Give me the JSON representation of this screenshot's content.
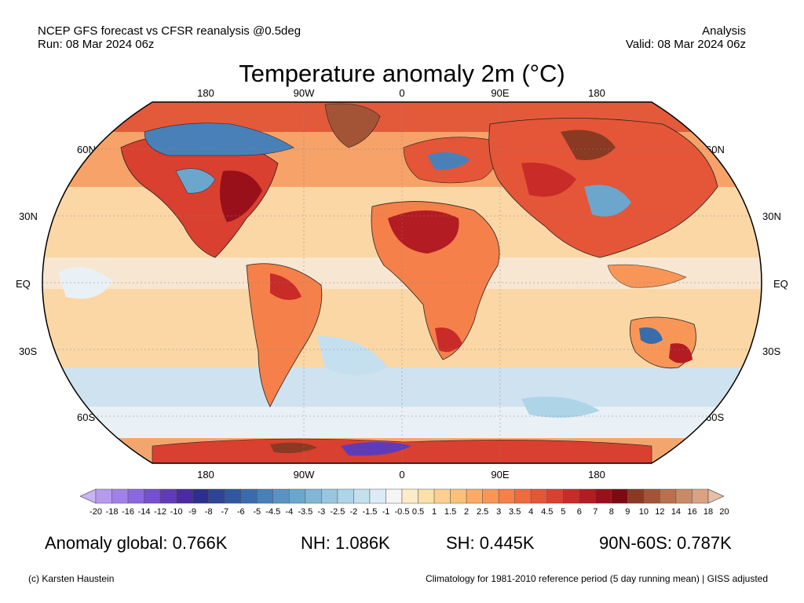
{
  "header": {
    "left_line1": "NCEP GFS forecast vs CFSR reanalysis @0.5deg",
    "left_line2": "Run: 08 Mar 2024 06z",
    "right_line1": "Analysis",
    "right_line2": "Valid: 08 Mar 2024 06z"
  },
  "title": "Temperature anomaly 2m (°C)",
  "map": {
    "lon_labels_top": [
      "180",
      "90W",
      "0",
      "90E",
      "180"
    ],
    "lon_labels_bottom": [
      "180",
      "90W",
      "0",
      "90E",
      "180"
    ],
    "lat_labels_left": [
      "60N",
      "30N",
      "EQ",
      "30S",
      "60S"
    ],
    "lat_labels_right": [
      "60N",
      "30N",
      "EQ",
      "30S",
      "60S"
    ]
  },
  "colorbar": {
    "ticks": [
      "-20",
      "-18",
      "-16",
      "-14",
      "-12",
      "-10",
      "-9",
      "-8",
      "-7",
      "-6",
      "-5",
      "-4.5",
      "-4",
      "-3.5",
      "-3",
      "-2.5",
      "-2",
      "-1.5",
      "-1",
      "-0.5",
      "0.5",
      "1",
      "1.5",
      "2",
      "2.5",
      "3",
      "3.5",
      "4",
      "4.5",
      "5",
      "6",
      "7",
      "8",
      "9",
      "10",
      "12",
      "14",
      "16",
      "18",
      "20"
    ],
    "colors": [
      "#c8b4f5",
      "#b49bee",
      "#9f82e6",
      "#8a69de",
      "#7550d0",
      "#5f3bb8",
      "#4a2ba2",
      "#2e2f8c",
      "#2d4594",
      "#31589e",
      "#3a6cab",
      "#4a80b8",
      "#5a93c3",
      "#6ca6cd",
      "#82b6d7",
      "#98c6e0",
      "#aed4e8",
      "#c4e0ef",
      "#dbecf6",
      "#f5f5f5",
      "#fdecc8",
      "#fde0a8",
      "#fdd08f",
      "#fcc07a",
      "#fbab67",
      "#f89658",
      "#f5804a",
      "#ef6a3f",
      "#e55537",
      "#d94030",
      "#c92b28",
      "#b31c22",
      "#99101b",
      "#7c0a12",
      "#8a3a22",
      "#a35436",
      "#b8704d",
      "#c98a66",
      "#d9a283",
      "#e8bea4"
    ]
  },
  "stats": {
    "global": "Anomaly global: 0.766K",
    "nh": "NH: 1.086K",
    "sh": "SH: 0.445K",
    "arctic": "90N-60S: 0.787K"
  },
  "footer": {
    "left": "(c) Karsten Haustein",
    "right": "Climatology for 1981-2010 reference period (5 day running mean) | GISS adjusted"
  }
}
